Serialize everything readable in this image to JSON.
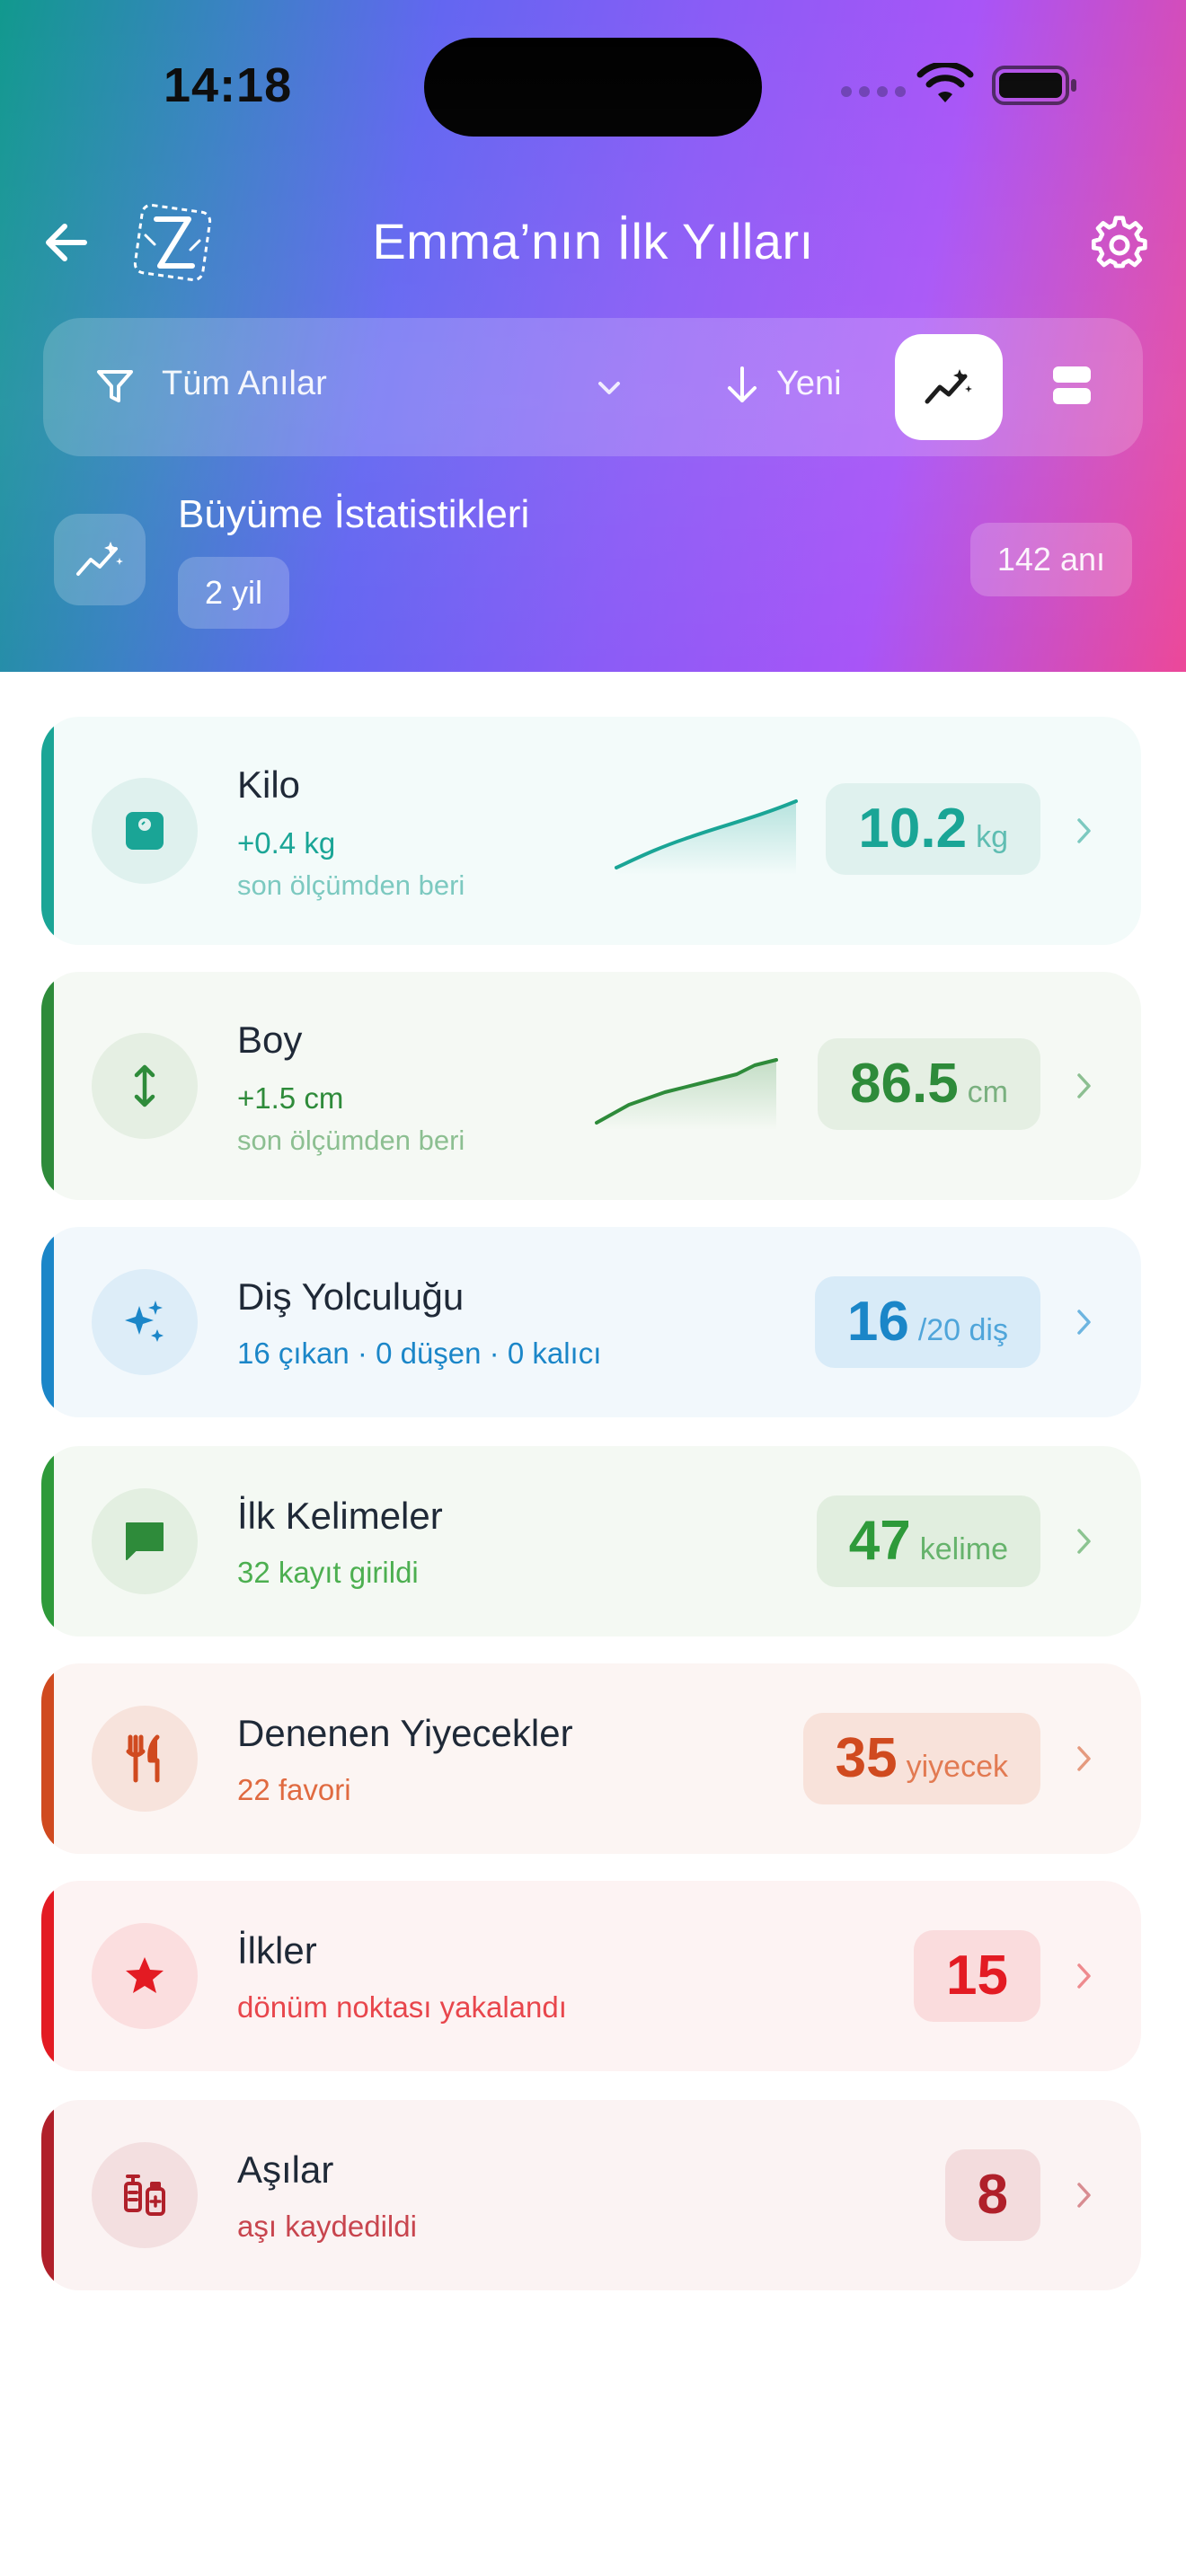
{
  "status_bar": {
    "time": "14:18"
  },
  "header": {
    "title": "Emma’nın İlk Yılları"
  },
  "filter_bar": {
    "filter_label": "Tüm Anılar",
    "sort_label": "Yeni"
  },
  "stats": {
    "title": "Büyüme İstatistikleri",
    "period": "2 yil",
    "count": "142 anı"
  },
  "cards": [
    {
      "title": "Kilo",
      "delta": "+0.4 kg",
      "note": "son ölçümden beri",
      "value": "10.2",
      "unit": "kg",
      "icon": "scale-icon",
      "color": "#1aa596"
    },
    {
      "title": "Boy",
      "delta": "+1.5 cm",
      "note": "son ölçümden beri",
      "value": "86.5",
      "unit": "cm",
      "icon": "height-arrow-icon",
      "color": "#2e8b3a"
    },
    {
      "title": "Diş Yolculuğu",
      "detail": "16 çıkan · 0 düşen · 0 kalıcı",
      "value": "16",
      "unit": "/20 diş",
      "icon": "sparkle-icon",
      "color": "#1b86c8"
    },
    {
      "title": "İlk Kelimeler",
      "detail": "32 kayıt girildi",
      "value": "47",
      "unit": "kelime",
      "icon": "chat-bubble-icon",
      "color": "#2e9a3a"
    },
    {
      "title": "Denenen Yiyecekler",
      "detail": "22 favori",
      "value": "35",
      "unit": "yiyecek",
      "icon": "utensils-icon",
      "color": "#d04a1f"
    },
    {
      "title": "İlkler",
      "detail": "dönüm noktası yakalandı",
      "value": "15",
      "unit": "",
      "icon": "star-icon",
      "color": "#e31b23"
    },
    {
      "title": "Aşılar",
      "detail": "aşı kaydedildi",
      "value": "8",
      "unit": "",
      "icon": "vaccine-icon",
      "color": "#b0202a"
    }
  ],
  "colors": {
    "teal": "#1aa596",
    "green": "#2e8b3a",
    "blue": "#1b86c8",
    "leaf": "#2e9a3a",
    "orange": "#d04a1f",
    "red": "#e31b23",
    "crimson": "#b0202a"
  }
}
